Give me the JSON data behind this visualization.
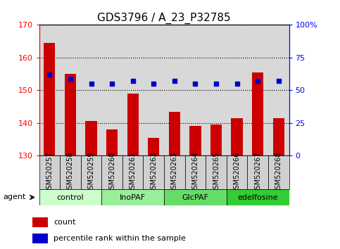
{
  "title": "GDS3796 / A_23_P32785",
  "samples": [
    "GSM520257",
    "GSM520258",
    "GSM520259",
    "GSM520260",
    "GSM520261",
    "GSM520262",
    "GSM520263",
    "GSM520264",
    "GSM520265",
    "GSM520266",
    "GSM520267",
    "GSM520268"
  ],
  "bar_values": [
    164.5,
    155.0,
    140.5,
    138.0,
    149.0,
    135.5,
    143.5,
    139.0,
    139.5,
    141.5,
    155.5,
    141.5
  ],
  "percentile_values": [
    62,
    59,
    55,
    55,
    57,
    55,
    57,
    55,
    55,
    55,
    57,
    57
  ],
  "bar_color": "#cc0000",
  "percentile_color": "#0000cc",
  "bar_bottom": 130,
  "ylim_left": [
    130,
    170
  ],
  "ylim_right": [
    0,
    100
  ],
  "yticks_left": [
    130,
    140,
    150,
    160,
    170
  ],
  "yticks_right": [
    0,
    25,
    50,
    75,
    100
  ],
  "yticklabels_right": [
    "0",
    "25",
    "50",
    "75",
    "100%"
  ],
  "groups": [
    {
      "label": "control",
      "start": 0,
      "end": 3,
      "color": "#ccffcc"
    },
    {
      "label": "InoPAF",
      "start": 3,
      "end": 6,
      "color": "#99ee99"
    },
    {
      "label": "GlcPAF",
      "start": 6,
      "end": 9,
      "color": "#66dd66"
    },
    {
      "label": "edelfosine",
      "start": 9,
      "end": 12,
      "color": "#33cc33"
    }
  ],
  "agent_label": "agent",
  "legend_count_label": "count",
  "legend_percentile_label": "percentile rank within the sample",
  "background_color": "#ffffff",
  "plot_bg_color": "#d8d8d8",
  "title_fontsize": 11,
  "tick_fontsize": 8,
  "label_fontsize": 7
}
